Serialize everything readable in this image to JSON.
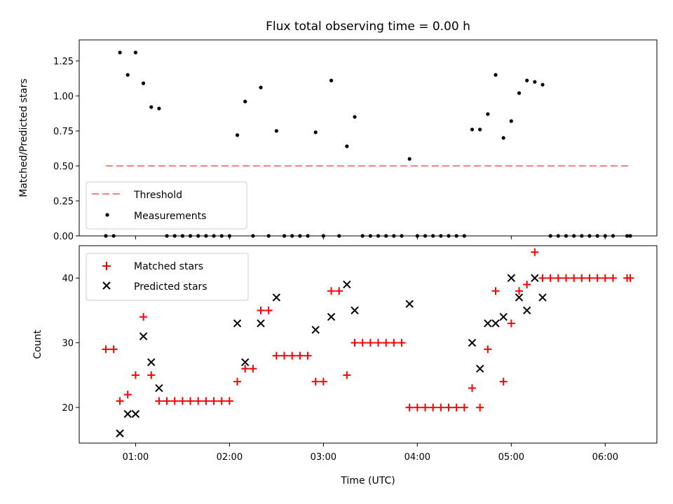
{
  "chart_data": {
    "title": "Flux total observing time = 0.00 h",
    "top": {
      "type": "scatter",
      "ylabel": "Matched/Predicted stars",
      "ylim": [
        0,
        1.4
      ],
      "yticks": [
        "0.00",
        "0.25",
        "0.50",
        "0.75",
        "1.00",
        "1.25"
      ],
      "threshold": {
        "name": "Threshold",
        "value": 0.5,
        "x_start": 0.6833,
        "x_end": 6.2833,
        "color": "#ff8080"
      },
      "measurements": {
        "name": "Measurements",
        "x": [
          0.6833,
          0.7667,
          0.8333,
          0.9167,
          1.0,
          1.0833,
          1.1667,
          1.25,
          1.3333,
          1.4167,
          1.5,
          1.5833,
          1.6667,
          1.75,
          1.8333,
          1.9167,
          2.0,
          2.0833,
          2.1667,
          2.25,
          2.3333,
          2.4167,
          2.5,
          2.5833,
          2.6667,
          2.75,
          2.8333,
          2.9167,
          3.0,
          3.0833,
          3.1667,
          3.25,
          3.3333,
          3.4167,
          3.5,
          3.5833,
          3.6667,
          3.75,
          3.8333,
          3.9167,
          4.0,
          4.0833,
          4.1667,
          4.25,
          4.3333,
          4.4167,
          4.5,
          4.5833,
          4.6667,
          4.75,
          4.8333,
          4.9167,
          5.0,
          5.0833,
          5.1667,
          5.25,
          5.3333,
          5.4167,
          5.5,
          5.5833,
          5.6667,
          5.75,
          5.8333,
          5.9167,
          6.0,
          6.0833,
          6.2333,
          6.2667
        ],
        "y": [
          0,
          0,
          1.31,
          1.15,
          1.31,
          1.09,
          0.92,
          0.91,
          0,
          0,
          0,
          0,
          0,
          0,
          0,
          0,
          0,
          0.72,
          0.96,
          0,
          1.06,
          0,
          0.75,
          0,
          0,
          0,
          0,
          0.74,
          0,
          1.11,
          0,
          0.64,
          0.85,
          0,
          0,
          0,
          0,
          0,
          0,
          0.55,
          0,
          0,
          0,
          0,
          0,
          0,
          0,
          0.76,
          0.76,
          0.87,
          1.15,
          0.7,
          0.82,
          1.02,
          1.11,
          1.1,
          1.08,
          0,
          0,
          0,
          0,
          0,
          0,
          0,
          0,
          0,
          0,
          0
        ]
      }
    },
    "bottom": {
      "type": "scatter",
      "ylabel": "Count",
      "xlabel": "Time (UTC)",
      "ylim": [
        14.5,
        45
      ],
      "yticks": [
        "20",
        "30",
        "40"
      ],
      "xticks": [
        "01:00",
        "02:00",
        "03:00",
        "04:00",
        "05:00",
        "06:00"
      ],
      "xlim_hours": [
        0.4,
        6.55
      ],
      "matched": {
        "name": "Matched stars",
        "color": "#ff0000",
        "x": [
          0.6833,
          0.7667,
          0.8333,
          0.9167,
          1.0,
          1.0833,
          1.1667,
          1.25,
          1.3333,
          1.4167,
          1.5,
          1.5833,
          1.6667,
          1.75,
          1.8333,
          1.9167,
          2.0,
          2.0833,
          2.1667,
          2.25,
          2.3333,
          2.4167,
          2.5,
          2.5833,
          2.6667,
          2.75,
          2.8333,
          2.9167,
          3.0,
          3.0833,
          3.1667,
          3.25,
          3.3333,
          3.4167,
          3.5,
          3.5833,
          3.6667,
          3.75,
          3.8333,
          3.9167,
          4.0,
          4.0833,
          4.1667,
          4.25,
          4.3333,
          4.4167,
          4.5,
          4.5833,
          4.6667,
          4.75,
          4.8333,
          4.9167,
          5.0,
          5.0833,
          5.1667,
          5.25,
          5.3333,
          5.4167,
          5.5,
          5.5833,
          5.6667,
          5.75,
          5.8333,
          5.9167,
          6.0,
          6.0833,
          6.2333,
          6.2667
        ],
        "y": [
          29,
          29,
          21,
          22,
          25,
          34,
          25,
          21,
          21,
          21,
          21,
          21,
          21,
          21,
          21,
          21,
          21,
          24,
          26,
          26,
          35,
          35,
          28,
          28,
          28,
          28,
          28,
          24,
          24,
          38,
          38,
          25,
          30,
          30,
          30,
          30,
          30,
          30,
          30,
          20,
          20,
          20,
          20,
          20,
          20,
          20,
          20,
          23,
          20,
          29,
          38,
          24,
          33,
          38,
          39,
          44,
          40,
          40,
          40,
          40,
          40,
          40,
          40,
          40,
          40,
          40,
          40,
          40
        ]
      },
      "predicted": {
        "name": "Predicted stars",
        "color": "#000000",
        "x": [
          0.8333,
          0.9167,
          1.0,
          1.0833,
          1.1667,
          1.25,
          2.0833,
          2.1667,
          2.3333,
          2.5,
          2.9167,
          3.0833,
          3.25,
          3.3333,
          3.9167,
          4.5833,
          4.6667,
          4.75,
          4.8333,
          4.9167,
          5.0,
          5.0833,
          5.1667,
          5.25,
          5.3333
        ],
        "y": [
          16,
          19,
          19,
          31,
          27,
          23,
          33,
          27,
          33,
          37,
          32,
          34,
          39,
          35,
          36,
          30,
          26,
          33,
          33,
          34,
          40,
          37,
          35,
          40,
          37
        ]
      }
    }
  }
}
